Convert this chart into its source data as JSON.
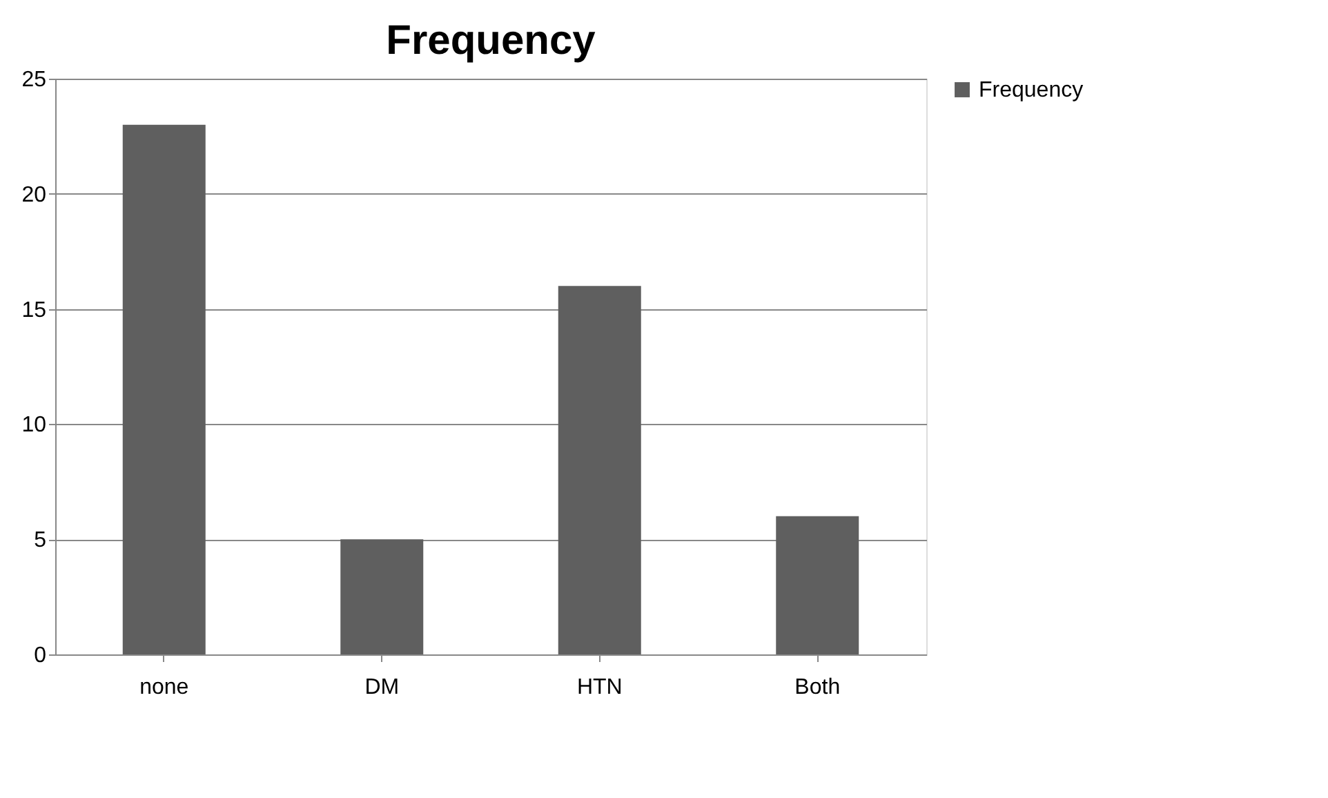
{
  "chart_data": {
    "type": "bar",
    "title": "Frequency",
    "categories": [
      "none",
      "DM",
      "HTN",
      "Both"
    ],
    "series": [
      {
        "name": "Frequency",
        "color": "#5f5f5f",
        "values": [
          23,
          5,
          16,
          6
        ]
      }
    ],
    "ylim": [
      0,
      25
    ],
    "yticks": [
      0,
      5,
      10,
      15,
      20,
      25
    ],
    "grid": "y",
    "legend": "right"
  }
}
